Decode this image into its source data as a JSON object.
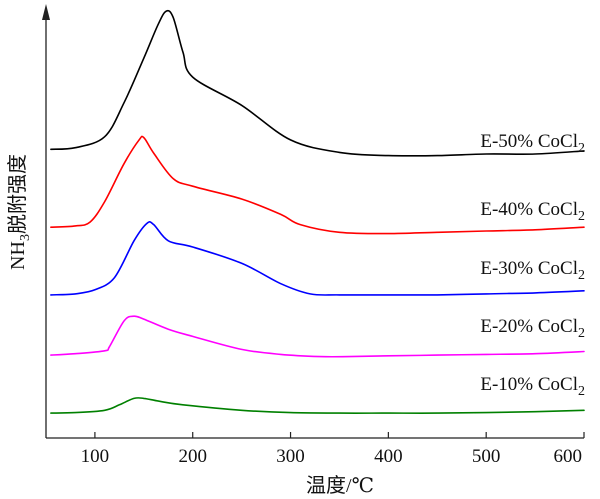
{
  "chart_data": {
    "type": "line",
    "xlabel_main": "温度/",
    "xlabel_unit": "℃",
    "ylabel_main": "NH",
    "ylabel_sub": "3",
    "ylabel_rest": "脱附强度",
    "xlim": [
      50,
      600
    ],
    "x_ticks": [
      "100",
      "200",
      "300",
      "400",
      "500",
      "600"
    ],
    "y_ticks_shown": false,
    "series": [
      {
        "name": "E-50% CoCl2",
        "label_main": "E-50% CoCl",
        "label_sub": "2",
        "color": "#000000",
        "x": [
          55,
          80,
          110,
          130,
          150,
          165,
          173,
          180,
          190,
          200,
          250,
          300,
          350,
          400,
          450,
          500,
          550,
          600
        ],
        "y": [
          0.1,
          0.11,
          0.18,
          0.4,
          0.68,
          0.9,
          0.98,
          0.94,
          0.72,
          0.56,
          0.38,
          0.16,
          0.08,
          0.06,
          0.06,
          0.07,
          0.07,
          0.09
        ]
      },
      {
        "name": "E-40% CoCl2",
        "label_main": "E-40% CoCl",
        "label_sub": "2",
        "color": "#ff0000",
        "x": [
          55,
          80,
          95,
          110,
          130,
          145,
          150,
          160,
          180,
          200,
          250,
          290,
          310,
          350,
          400,
          450,
          500,
          550,
          600
        ],
        "y": [
          0.1,
          0.11,
          0.14,
          0.3,
          0.6,
          0.78,
          0.8,
          0.68,
          0.48,
          0.42,
          0.32,
          0.2,
          0.12,
          0.06,
          0.05,
          0.06,
          0.07,
          0.08,
          0.1
        ]
      },
      {
        "name": "E-30% CoCl2",
        "label_main": "E-30% CoCl",
        "label_sub": "2",
        "color": "#0000ff",
        "x": [
          55,
          80,
          100,
          120,
          140,
          153,
          160,
          175,
          200,
          250,
          290,
          320,
          350,
          400,
          450,
          500,
          550,
          600
        ],
        "y": [
          0.05,
          0.06,
          0.1,
          0.22,
          0.58,
          0.75,
          0.74,
          0.58,
          0.52,
          0.36,
          0.16,
          0.06,
          0.05,
          0.05,
          0.05,
          0.06,
          0.07,
          0.09
        ]
      },
      {
        "name": "E-20% CoCl2",
        "label_main": "E-20% CoCl",
        "label_sub": "2",
        "color": "#ff00ff",
        "x": [
          55,
          80,
          110,
          115,
          130,
          140,
          150,
          175,
          200,
          250,
          290,
          330,
          360,
          400,
          450,
          500,
          550,
          600
        ],
        "y": [
          0.04,
          0.06,
          0.1,
          0.16,
          0.52,
          0.58,
          0.54,
          0.4,
          0.3,
          0.12,
          0.05,
          0.02,
          0.02,
          0.03,
          0.04,
          0.05,
          0.06,
          0.09
        ]
      },
      {
        "name": "E-10% CoCl2",
        "label_main": "E-10% CoCl",
        "label_sub": "2",
        "color": "#008000",
        "x": [
          55,
          80,
          110,
          125,
          140,
          150,
          165,
          190,
          250,
          300,
          350,
          400,
          450,
          500,
          550,
          600
        ],
        "y": [
          0.02,
          0.03,
          0.08,
          0.2,
          0.34,
          0.34,
          0.28,
          0.2,
          0.08,
          0.03,
          0.02,
          0.02,
          0.02,
          0.03,
          0.05,
          0.08
        ]
      }
    ]
  }
}
